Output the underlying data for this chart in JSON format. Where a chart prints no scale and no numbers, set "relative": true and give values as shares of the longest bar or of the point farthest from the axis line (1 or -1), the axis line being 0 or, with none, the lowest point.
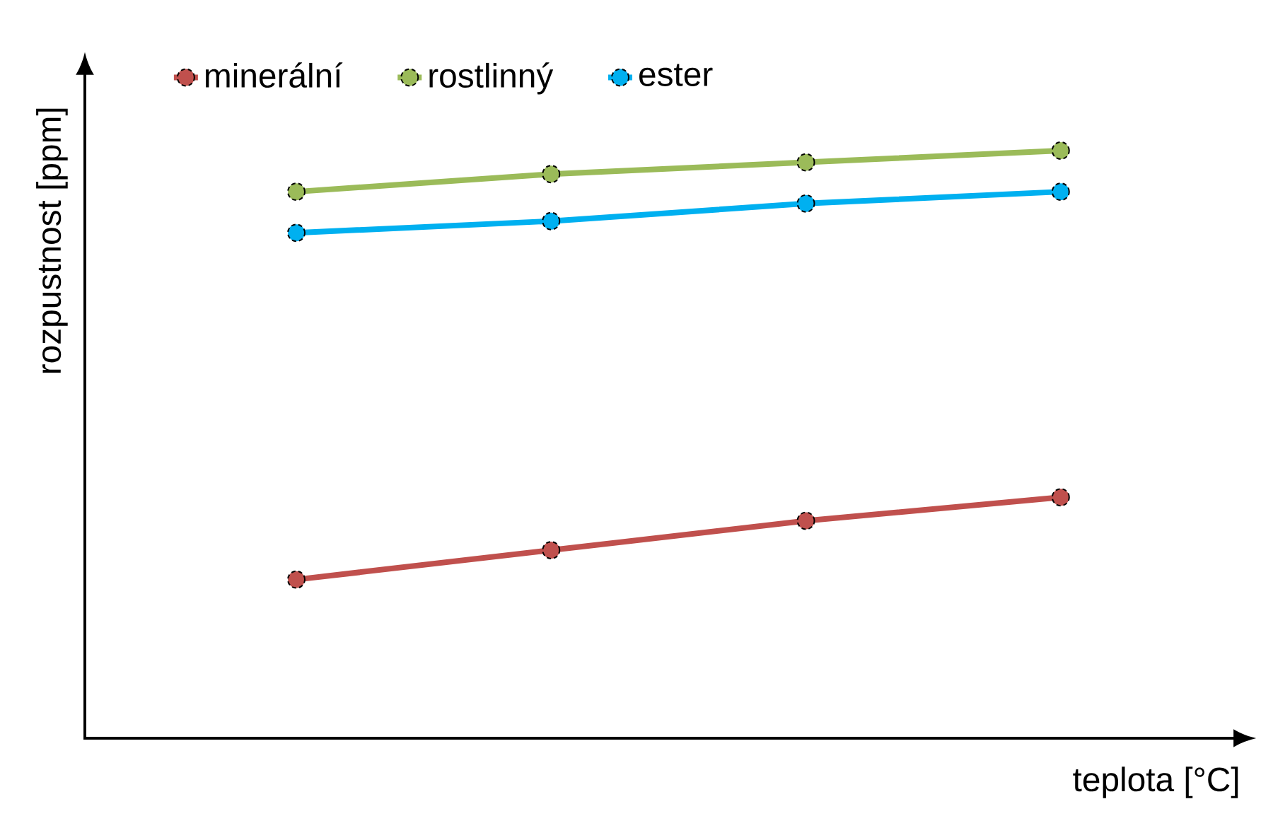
{
  "chart_data": {
    "type": "line",
    "xlabel": "teplota [°C]",
    "ylabel": "rozpustnost  [ppm]",
    "relative": true,
    "categories": [
      null,
      null,
      null,
      null
    ],
    "legend": "top",
    "marker": "circle",
    "line_style": "solid",
    "series": [
      {
        "name": "minerální",
        "color": "#c0504d",
        "values": [
          0.27,
          0.32,
          0.37,
          0.41
        ]
      },
      {
        "name": "rostlinný",
        "color": "#9bbb59",
        "values": [
          0.93,
          0.96,
          0.98,
          1
        ]
      },
      {
        "name": "ester",
        "color": "#00b0f0",
        "values": [
          0.86,
          0.88,
          0.91,
          0.93
        ]
      }
    ]
  }
}
